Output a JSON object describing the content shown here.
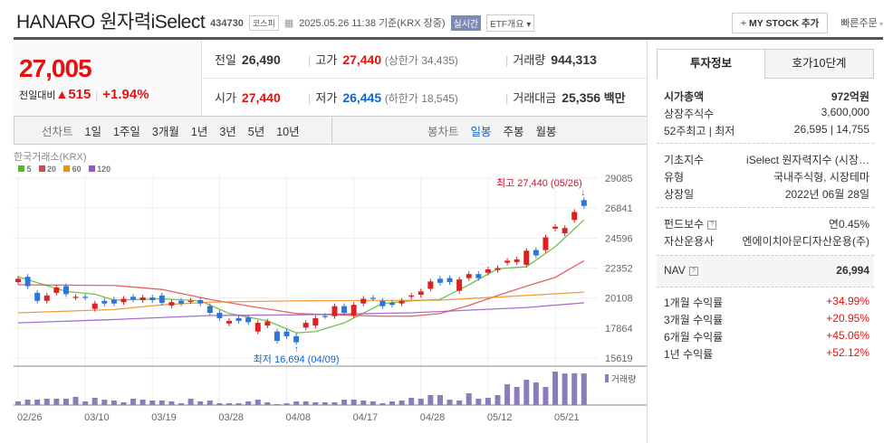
{
  "header": {
    "title": "HANARO 원자력iSelect",
    "code": "434730",
    "market": "코스피",
    "timestamp": "2025.05.26 11:38",
    "basis": "기준(KRX 장중)",
    "realtime": "실시간",
    "etf_overview": "ETF개요",
    "my_stock": "MY STOCK 추가",
    "quick_order": "빠른주문"
  },
  "price": {
    "current": "27,005",
    "change_label": "전일대비",
    "change": "515",
    "change_pct": "+1.94%"
  },
  "summary": {
    "prev_label": "전일",
    "prev": "26,490",
    "high_label": "고가",
    "high": "27,440",
    "upper_limit": "(상한가 34,435)",
    "volume_label": "거래량",
    "volume": "944,313",
    "open_label": "시가",
    "open": "27,440",
    "low_label": "저가",
    "low": "26,445",
    "lower_limit": "(하한가 18,545)",
    "amount_label": "거래대금",
    "amount": "25,356",
    "amount_unit": "백만"
  },
  "chart_tabs": {
    "line_label": "선차트",
    "periods": [
      "1일",
      "1주일",
      "3개월",
      "1년",
      "3년",
      "5년",
      "10년"
    ],
    "candle_label": "봉차트",
    "candle_periods": [
      "일봉",
      "주봉",
      "월봉"
    ]
  },
  "right_panel": {
    "tabs": [
      "투자정보",
      "호가10단계"
    ],
    "rows1": [
      {
        "k": "시가총액",
        "v": "972억원"
      },
      {
        "k": "상장주식수",
        "v": "3,600,000"
      },
      {
        "k": "52주최고 | 최저",
        "v": "26,595 | 14,755"
      }
    ],
    "rows2": [
      {
        "k": "기초지수",
        "v": "iSelect 원자력지수 (시장…"
      },
      {
        "k": "유형",
        "v": "국내주식형, 시장테마"
      },
      {
        "k": "상장일",
        "v": "2022년 06월 28일"
      }
    ],
    "rows3": [
      {
        "k": "펀드보수",
        "v": "연0.45%"
      },
      {
        "k": "자산운용사",
        "v": "엔에이치아문디자산운용(주)"
      }
    ],
    "nav": {
      "k": "NAV",
      "v": "26,994"
    },
    "returns": [
      {
        "k": "1개월 수익률",
        "v": "+34.99%"
      },
      {
        "k": "3개월 수익률",
        "v": "+20.95%"
      },
      {
        "k": "6개월 수익률",
        "v": "+45.06%"
      },
      {
        "k": "1년 수익률",
        "v": "+52.12%"
      }
    ]
  },
  "chart_data": {
    "type": "candlestick",
    "source_label": "한국거래소(KRX)",
    "legend": [
      {
        "name": "5",
        "color": "#5cb531"
      },
      {
        "name": "20",
        "color": "#e04545"
      },
      {
        "name": "60",
        "color": "#f08c1e"
      },
      {
        "name": "120",
        "color": "#9457c8"
      }
    ],
    "y_ticks": [
      29085,
      26841,
      24596,
      22352,
      20108,
      17864,
      15619
    ],
    "ylim": [
      15619,
      29085
    ],
    "x_ticks": [
      {
        "i": 0,
        "label": "02/26"
      },
      {
        "i": 7,
        "label": "03/10"
      },
      {
        "i": 14,
        "label": "03/19"
      },
      {
        "i": 21,
        "label": "03/28"
      },
      {
        "i": 28,
        "label": "04/08"
      },
      {
        "i": 35,
        "label": "04/17"
      },
      {
        "i": 42,
        "label": "04/28"
      },
      {
        "i": 49,
        "label": "05/12"
      },
      {
        "i": 56,
        "label": "05/21"
      }
    ],
    "high_note": "최고 27,440 (05/26)",
    "low_note": "최저 16,694 (04/09)",
    "high_index": 59,
    "low_index": 29,
    "volume_label": "거래량",
    "candles": [
      [
        21300,
        21550
      ],
      [
        21700,
        21000
      ],
      [
        20500,
        19900
      ],
      [
        19900,
        20300
      ],
      [
        20500,
        20900
      ],
      [
        21000,
        20400
      ],
      [
        20150,
        20200
      ],
      [
        20200,
        20150
      ],
      [
        19300,
        19700
      ],
      [
        19900,
        19700
      ],
      [
        20000,
        19700
      ],
      [
        19800,
        20050
      ],
      [
        20200,
        20000
      ],
      [
        19950,
        20150
      ],
      [
        20150,
        19950
      ],
      [
        20300,
        19750
      ],
      [
        19550,
        19800
      ],
      [
        19900,
        19700
      ],
      [
        19880,
        19900
      ],
      [
        19950,
        19700
      ],
      [
        19500,
        19000
      ],
      [
        19000,
        18600
      ],
      [
        18200,
        18400
      ],
      [
        18600,
        18400
      ],
      [
        18650,
        18300
      ],
      [
        17600,
        18250
      ],
      [
        18050,
        18350
      ],
      [
        17600,
        16900
      ],
      [
        17600,
        17250
      ],
      [
        17250,
        16800
      ],
      [
        17900,
        18250
      ],
      [
        18050,
        18600
      ],
      [
        18770,
        18750
      ],
      [
        18750,
        19500
      ],
      [
        19500,
        19000
      ],
      [
        18800,
        19600
      ],
      [
        19700,
        20050
      ],
      [
        20120,
        20100
      ],
      [
        19900,
        19500
      ],
      [
        19750,
        19600
      ],
      [
        19700,
        19900
      ],
      [
        20200,
        20300
      ],
      [
        20350,
        20600
      ],
      [
        20800,
        21350
      ],
      [
        21550,
        21250
      ],
      [
        21600,
        21300
      ],
      [
        20650,
        21500
      ],
      [
        21600,
        21900
      ],
      [
        21900,
        21600
      ],
      [
        22000,
        22250
      ],
      [
        22200,
        22350
      ],
      [
        22750,
        22900
      ],
      [
        22800,
        23000
      ],
      [
        22600,
        23650
      ],
      [
        23700,
        23300
      ],
      [
        23700,
        24650
      ],
      [
        25300,
        25450
      ],
      [
        24950,
        25350
      ],
      [
        25950,
        26550
      ],
      [
        27440,
        27005
      ]
    ],
    "volume_k": [
      108,
      162,
      162,
      189,
      189,
      189,
      243,
      108,
      216,
      162,
      135,
      81,
      189,
      162,
      135,
      135,
      108,
      54,
      189,
      108,
      135,
      54,
      54,
      54,
      108,
      162,
      81,
      27,
      54,
      108,
      108,
      81,
      81,
      81,
      162,
      162,
      135,
      108,
      54,
      108,
      135,
      216,
      189,
      297,
      297,
      162,
      135,
      351,
      189,
      216,
      297,
      621,
      540,
      756,
      675,
      540,
      999,
      944,
      950,
      944
    ],
    "ma": {
      "5": [
        [
          0,
          21700
        ],
        [
          5,
          20600
        ],
        [
          8,
          20400
        ],
        [
          10,
          19950
        ],
        [
          15,
          20050
        ],
        [
          19,
          19900
        ],
        [
          22,
          18950
        ],
        [
          26,
          18400
        ],
        [
          29,
          17500
        ],
        [
          31,
          17600
        ],
        [
          34,
          18250
        ],
        [
          38,
          19700
        ],
        [
          41,
          19900
        ],
        [
          44,
          20000
        ],
        [
          47,
          21100
        ],
        [
          50,
          22300
        ],
        [
          53,
          22450
        ],
        [
          56,
          23950
        ],
        [
          59,
          25950
        ]
      ],
      "20": [
        [
          0,
          21100
        ],
        [
          10,
          21050
        ],
        [
          15,
          20750
        ],
        [
          20,
          20000
        ],
        [
          25,
          19400
        ],
        [
          29,
          18950
        ],
        [
          33,
          18850
        ],
        [
          38,
          18750
        ],
        [
          41,
          18750
        ],
        [
          44,
          18950
        ],
        [
          47,
          19550
        ],
        [
          50,
          20300
        ],
        [
          53,
          21000
        ],
        [
          56,
          21650
        ],
        [
          59,
          22900
        ]
      ],
      "60": [
        [
          0,
          19000
        ],
        [
          10,
          19250
        ],
        [
          15,
          19600
        ],
        [
          20,
          19800
        ],
        [
          29,
          19900
        ],
        [
          44,
          19950
        ],
        [
          53,
          20300
        ],
        [
          59,
          20550
        ]
      ],
      "120": [
        [
          0,
          18250
        ],
        [
          10,
          18500
        ],
        [
          20,
          18800
        ],
        [
          29,
          18850
        ],
        [
          41,
          19000
        ],
        [
          53,
          19400
        ],
        [
          59,
          19750
        ]
      ]
    }
  }
}
